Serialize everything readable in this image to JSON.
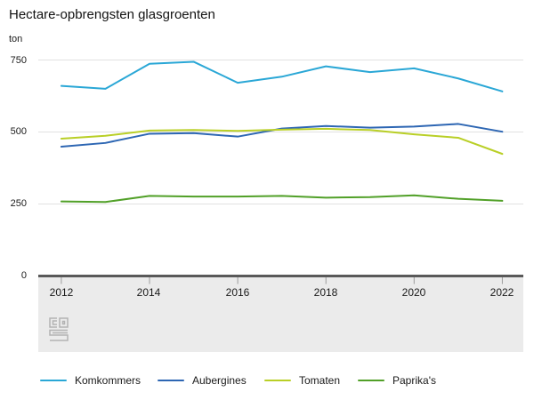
{
  "header": {
    "title": "Hectare-opbrengsten glasgroenten",
    "unit_label": "ton"
  },
  "chart_data": {
    "type": "line",
    "title": "Hectare-opbrengsten glasgroenten",
    "ylabel": "ton",
    "xlabel": "",
    "ylim": [
      0,
      750
    ],
    "grid": true,
    "legend_position": "bottom",
    "x": [
      2012,
      2013,
      2014,
      2015,
      2016,
      2017,
      2018,
      2019,
      2020,
      2021,
      2022
    ],
    "x_ticks": [
      "2012",
      "2014",
      "2016",
      "2018",
      "2020",
      "2022"
    ],
    "y_ticks": [
      "750",
      "500",
      "250",
      "0"
    ],
    "series": [
      {
        "name": "Komkommers",
        "color": "#2aa7d6",
        "values": [
          660,
          650,
          737,
          744,
          671,
          692,
          728,
          708,
          721,
          686,
          641
        ]
      },
      {
        "name": "Aubergines",
        "color": "#2d66b3",
        "values": [
          449,
          462,
          494,
          496,
          484,
          512,
          521,
          515,
          519,
          528,
          501
        ]
      },
      {
        "name": "Tomaten",
        "color": "#b9cf26",
        "values": [
          477,
          487,
          505,
          507,
          504,
          508,
          511,
          507,
          492,
          480,
          424
        ]
      },
      {
        "name": "Paprika's",
        "color": "#51a028",
        "values": [
          259,
          257,
          278,
          276,
          276,
          278,
          272,
          274,
          280,
          268,
          261
        ]
      }
    ],
    "gridline_values": [
      250,
      500,
      750
    ]
  },
  "colors": {
    "gridline": "#e2e2e2",
    "axis_line": "#595959",
    "axis_band": "#ebebeb",
    "tick_mark": "#9c9c9c",
    "logo": "#b3b3b3"
  },
  "footer": {
    "logo": "cbs-logo"
  }
}
